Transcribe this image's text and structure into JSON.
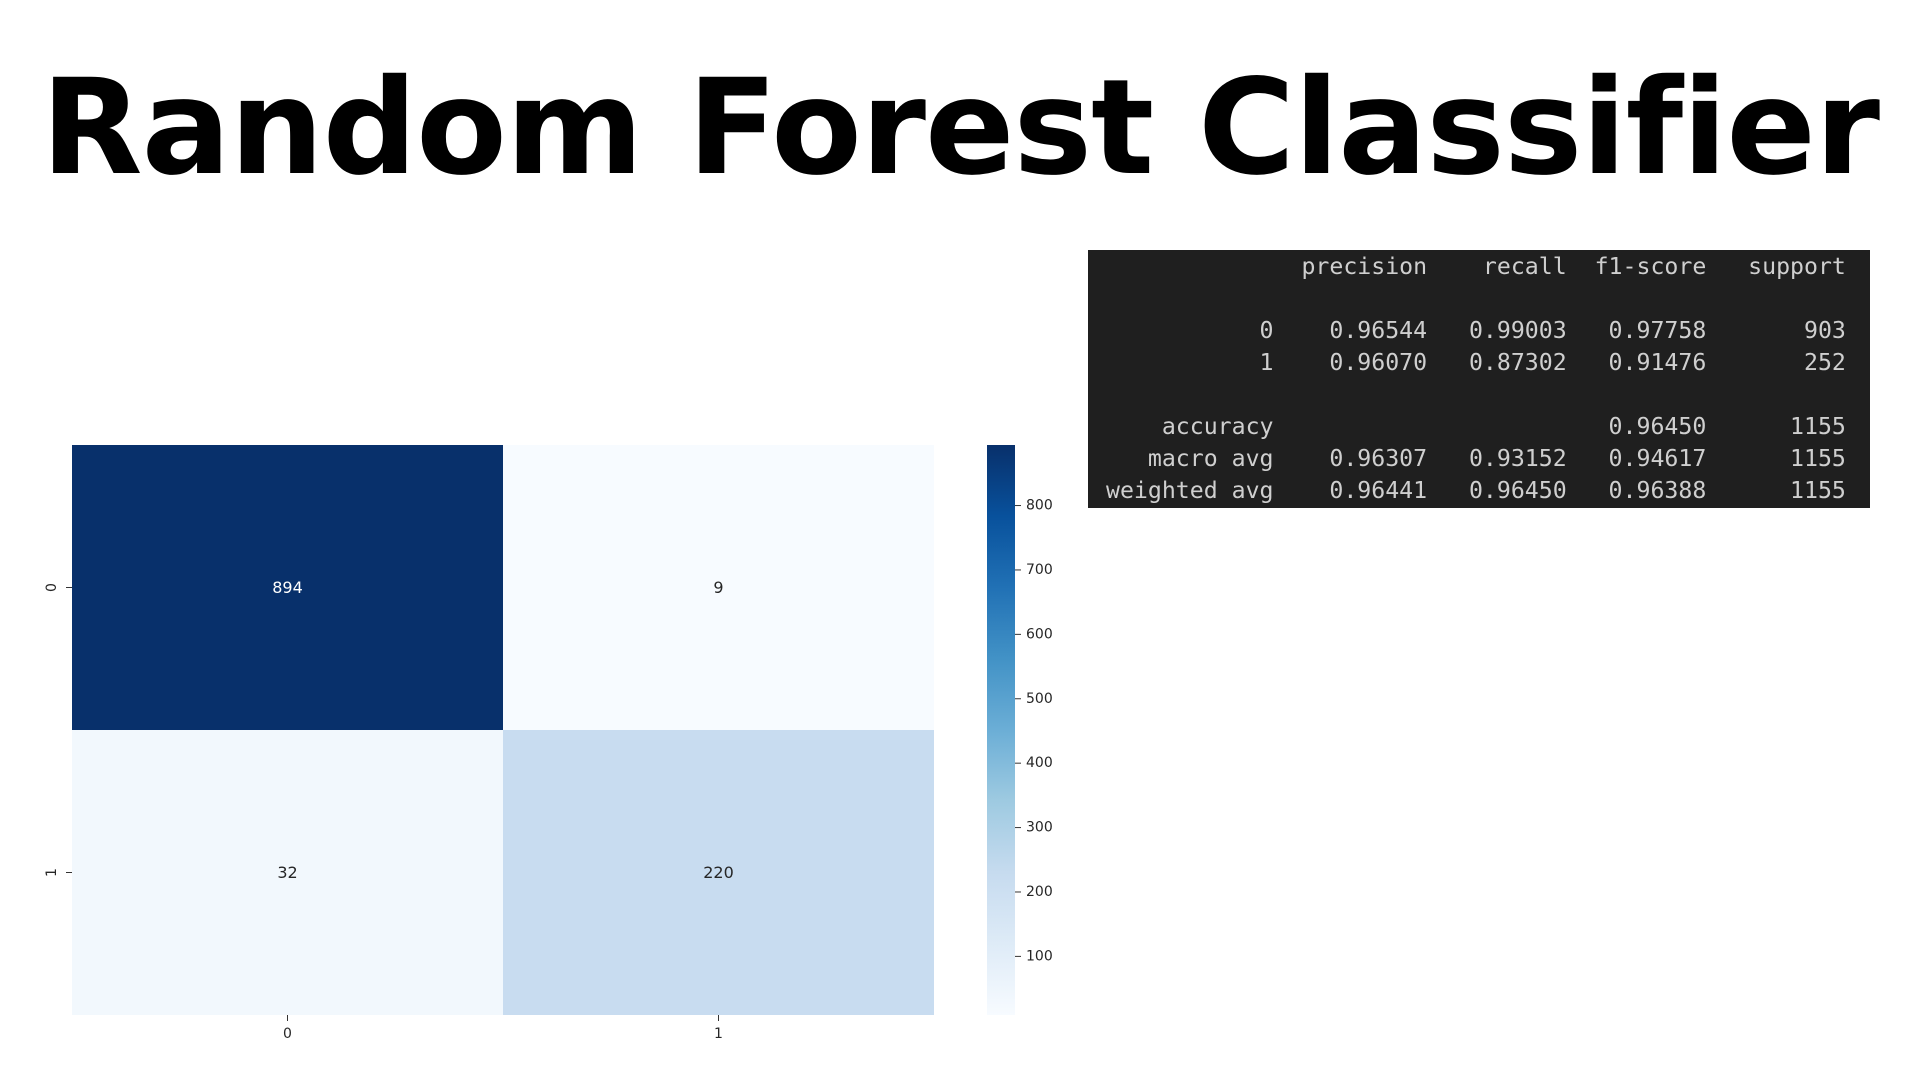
{
  "title": "Random Forest Classifier",
  "chart_data": [
    {
      "type": "heatmap",
      "rows": [
        "0",
        "1"
      ],
      "columns": [
        "0",
        "1"
      ],
      "values": [
        [
          894,
          9
        ],
        [
          32,
          220
        ]
      ],
      "colormap": "Blues",
      "vmin": 9,
      "vmax": 894,
      "colorbar_ticks": [
        100,
        200,
        300,
        400,
        500,
        600,
        700,
        800
      ],
      "xlabel": "",
      "ylabel": "",
      "title": ""
    },
    {
      "type": "table",
      "columns": [
        "",
        "precision",
        "recall",
        "f1-score",
        "support"
      ],
      "rows": [
        [
          "0",
          "0.96544",
          "0.99003",
          "0.97758",
          "903"
        ],
        [
          "1",
          "0.96070",
          "0.87302",
          "0.91476",
          "252"
        ],
        [
          "accuracy",
          "",
          "",
          "0.96450",
          "1155"
        ],
        [
          "macro avg",
          "0.96307",
          "0.93152",
          "0.94617",
          "1155"
        ],
        [
          "weighted avg",
          "0.96441",
          "0.96450",
          "0.96388",
          "1155"
        ]
      ],
      "background": "#1f1f1f",
      "text_color": "#cfcfcf"
    }
  ]
}
